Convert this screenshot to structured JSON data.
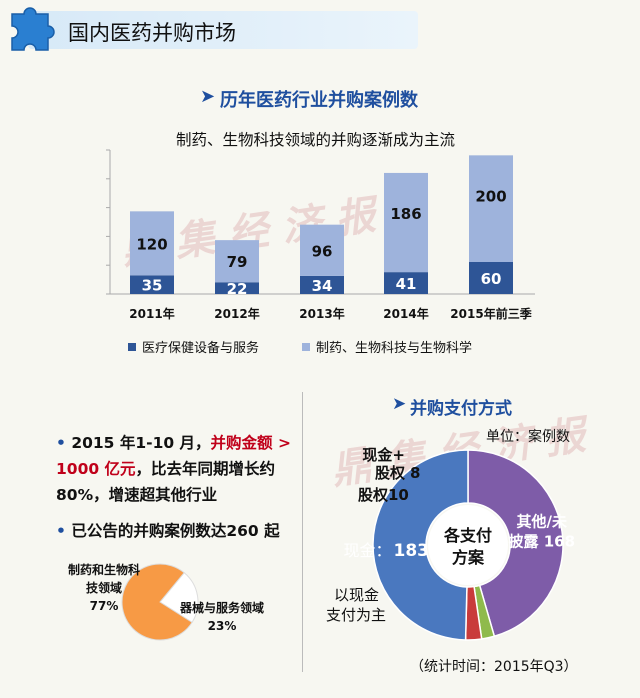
{
  "banner": {
    "title": "国内医药并购市场"
  },
  "watermark": "鼎 集 经 济 报",
  "chart1": {
    "heading": "历年医药行业并购案例数",
    "subtitle": "制药、生物科技领域的并购逐渐成为主流"
  },
  "chart2": {
    "heading": "并购支付方式",
    "unit": "单位：案例数",
    "center_label_1": "各支付",
    "center_label_2": "方案",
    "side_note_1": "以现金",
    "side_note_2": "支付为主",
    "footnote": "（统计时间：2015年Q3）"
  },
  "chart3": {},
  "bullets": {
    "b1_part1": "2015 年1-10 月，",
    "b1_red": "并购金额 > 1000 亿元",
    "b1_part2": "，比去年同期增长约 80%，增速超其他行业",
    "b2": "已公告的并购案例数达260 起"
  },
  "chart_data": [
    {
      "type": "bar",
      "stacked": true,
      "categories": [
        "2011年",
        "2012年",
        "2013年",
        "2014年",
        "2015年前三季"
      ],
      "series": [
        {
          "name": "医疗保健设备与服务",
          "values": [
            35,
            22,
            34,
            41,
            60
          ],
          "color": "#2e5596"
        },
        {
          "name": "制药、生物科技与生物科学",
          "values": [
            120,
            79,
            96,
            186,
            200
          ],
          "color": "#9eb3dc"
        }
      ],
      "legend": "bottom"
    },
    {
      "type": "pie",
      "donut": true,
      "slices": [
        {
          "label": "现金",
          "value": 183,
          "color": "#4a78bf"
        },
        {
          "label": "股权",
          "value": 10,
          "color": "#c93b3b"
        },
        {
          "label": "现金+股权",
          "value": 8,
          "color": "#8fba4c"
        },
        {
          "label": "其他/未披露",
          "value": 168,
          "color": "#7e5ca8"
        }
      ]
    },
    {
      "type": "pie",
      "slices": [
        {
          "label": "制药和生物科技领域",
          "value": 77,
          "display": "77%",
          "color": "#f79a45"
        },
        {
          "label": "器械与服务领域",
          "value": 23,
          "display": "23%",
          "color": "#ffffff"
        }
      ]
    }
  ]
}
